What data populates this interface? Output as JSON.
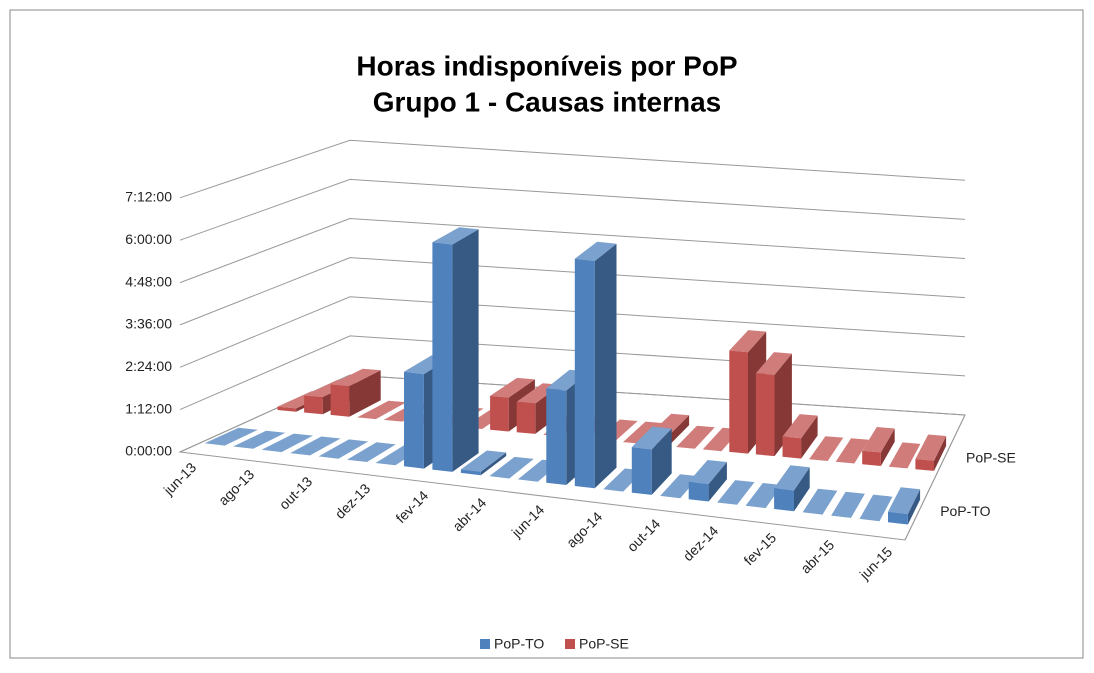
{
  "chart_data": {
    "type": "bar3d",
    "title": [
      "Horas indisponíveis por PoP",
      "Grupo 1 - Causas internas"
    ],
    "categories": [
      "jun-13",
      null,
      "ago-13",
      null,
      "out-13",
      null,
      "dez-13",
      null,
      "fev-14",
      null,
      "abr-14",
      null,
      "jun-14",
      null,
      "ago-14",
      null,
      "out-14",
      null,
      "dez-14",
      null,
      "fev-15",
      null,
      "abr-15",
      null,
      "jun-15"
    ],
    "series": [
      {
        "name": "PoP-TO",
        "color": "#4f81bd",
        "values": [
          0,
          0,
          0,
          0,
          0,
          0,
          0,
          2.7,
          6.5,
          0.1,
          0,
          0,
          2.7,
          6.5,
          0,
          1.3,
          0,
          0.5,
          0,
          0,
          0.6,
          0,
          0,
          0,
          0.3
        ]
      },
      {
        "name": "PoP-SE",
        "color": "#c0504d",
        "values": [
          0.1,
          0.5,
          0.9,
          0,
          0,
          0,
          0,
          0,
          1.0,
          0.9,
          0,
          0,
          0,
          0,
          0.3,
          0,
          0,
          3.0,
          2.4,
          0.6,
          0,
          0,
          0.4,
          0,
          0.3
        ]
      }
    ],
    "ylim": [
      0,
      7.2
    ],
    "yticks": [
      {
        "value": 0,
        "label": "0:00:00"
      },
      {
        "value": 1.2,
        "label": "1:12:00"
      },
      {
        "value": 2.4,
        "label": "2:24:00"
      },
      {
        "value": 3.6,
        "label": "3:36:00"
      },
      {
        "value": 4.8,
        "label": "4:48:00"
      },
      {
        "value": 6.0,
        "label": "6:00:00"
      },
      {
        "value": 7.2,
        "label": "7:12:00"
      }
    ],
    "grid": true,
    "legend": "bottom"
  }
}
